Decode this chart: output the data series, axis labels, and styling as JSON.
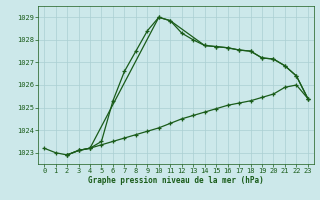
{
  "title": "Graphe pression niveau de la mer (hPa)",
  "background_color": "#cce8ea",
  "grid_color": "#aacfd2",
  "line_color": "#1a5c1a",
  "x_min": -0.5,
  "x_max": 23.5,
  "y_min": 1022.5,
  "y_max": 1029.5,
  "y_ticks": [
    1023,
    1024,
    1025,
    1026,
    1027,
    1028,
    1029
  ],
  "x_ticks": [
    0,
    1,
    2,
    3,
    4,
    5,
    6,
    7,
    8,
    9,
    10,
    11,
    12,
    13,
    14,
    15,
    16,
    17,
    18,
    19,
    20,
    21,
    22,
    23
  ],
  "series1_x": [
    0,
    1,
    2,
    3,
    4,
    5,
    6,
    7,
    8,
    9,
    10,
    11,
    12,
    13,
    14,
    15,
    16,
    17,
    18,
    19,
    20,
    21,
    22,
    23
  ],
  "series1_y": [
    1023.2,
    1023.0,
    1022.9,
    1023.1,
    1023.2,
    1023.5,
    1025.3,
    1026.6,
    1027.5,
    1028.4,
    1029.0,
    1028.85,
    1028.3,
    1028.0,
    1027.75,
    1027.7,
    1027.65,
    1027.55,
    1027.5,
    1027.2,
    1027.15,
    1026.85,
    1026.4,
    1025.4
  ],
  "series2_x": [
    2,
    3,
    4,
    10,
    11,
    14,
    15,
    16,
    17,
    18,
    19,
    20,
    21,
    22,
    23
  ],
  "series2_y": [
    1022.9,
    1023.1,
    1023.2,
    1029.0,
    1028.85,
    1027.75,
    1027.7,
    1027.65,
    1027.55,
    1027.5,
    1027.2,
    1027.15,
    1026.85,
    1026.4,
    1025.4
  ],
  "series3_x": [
    2,
    3,
    4,
    5,
    6,
    7,
    8,
    9,
    10,
    11,
    12,
    13,
    14,
    15,
    16,
    17,
    18,
    19,
    20,
    21,
    22,
    23
  ],
  "series3_y": [
    1022.9,
    1023.1,
    1023.2,
    1023.35,
    1023.5,
    1023.65,
    1023.8,
    1023.95,
    1024.1,
    1024.3,
    1024.5,
    1024.65,
    1024.8,
    1024.95,
    1025.1,
    1025.2,
    1025.3,
    1025.45,
    1025.6,
    1025.9,
    1026.0,
    1025.4
  ]
}
